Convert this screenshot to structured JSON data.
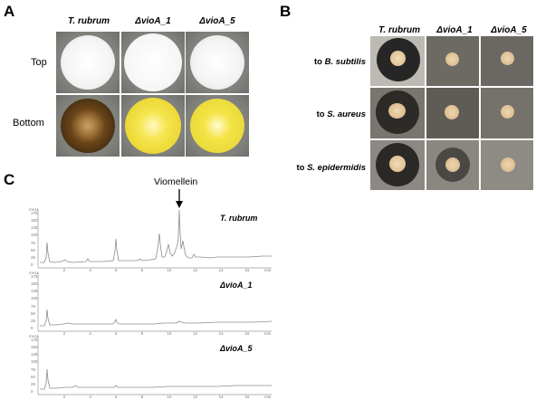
{
  "panels": {
    "A": {
      "letter": "A",
      "columns": [
        "T. rubrum",
        "ΔvioA_1",
        "ΔvioA_5"
      ],
      "rows": [
        "Top",
        "Bottom"
      ]
    },
    "B": {
      "letter": "B",
      "columns": [
        "T. rubrum",
        "ΔvioA_1",
        "ΔvioA_5"
      ],
      "rows": [
        {
          "prefix": "to ",
          "organism": "B. subtilis"
        },
        {
          "prefix": "to ",
          "organism": "S. aureus"
        },
        {
          "prefix": "to ",
          "organism": "S. epidermidis"
        }
      ]
    },
    "C": {
      "letter": "C",
      "peak_annotation": "Viomellein",
      "traces": [
        "T. rubrum",
        "ΔvioA_1",
        "ΔvioA_5"
      ],
      "axis_unit_x": "min",
      "axis_unit_y": "mAU",
      "x_ticks": [
        "2",
        "4",
        "6",
        "8",
        "10",
        "12",
        "14",
        "16"
      ],
      "y_ticks": [
        "175",
        "150",
        "125",
        "100",
        "75",
        "50",
        "25",
        "0"
      ]
    }
  },
  "colors": {
    "plate_gray": "#80817c",
    "colony_white": "#f2f2f2",
    "colony_yellow": "#efe24a",
    "colony_brown": "#5a3a16",
    "halo_dark": "#2b2b2b",
    "disc_tan": "#e4c9a0",
    "trace_line": "#8c8c8c"
  }
}
